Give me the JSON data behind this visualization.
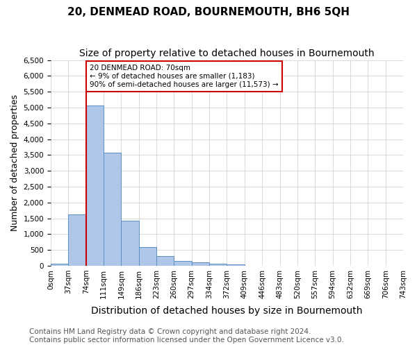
{
  "title": "20, DENMEAD ROAD, BOURNEMOUTH, BH6 5QH",
  "subtitle": "Size of property relative to detached houses in Bournemouth",
  "xlabel": "Distribution of detached houses by size in Bournemouth",
  "ylabel": "Number of detached properties",
  "bin_labels": [
    "0sqm",
    "37sqm",
    "74sqm",
    "111sqm",
    "149sqm",
    "186sqm",
    "223sqm",
    "260sqm",
    "297sqm",
    "334sqm",
    "372sqm",
    "409sqm",
    "446sqm",
    "483sqm",
    "520sqm",
    "557sqm",
    "594sqm",
    "632sqm",
    "669sqm",
    "706sqm",
    "743sqm"
  ],
  "bar_values": [
    70,
    1620,
    5070,
    3580,
    1420,
    590,
    310,
    155,
    100,
    60,
    50,
    0,
    0,
    0,
    0,
    0,
    0,
    0,
    0,
    0
  ],
  "bar_color": "#aec6e8",
  "bar_edge_color": "#5a8fc2",
  "ylim": [
    0,
    6500
  ],
  "yticks": [
    0,
    500,
    1000,
    1500,
    2000,
    2500,
    3000,
    3500,
    4000,
    4500,
    5000,
    5500,
    6000,
    6500
  ],
  "property_line_x": 74,
  "annotation_box_text": "20 DENMEAD ROAD: 70sqm\n← 9% of detached houses are smaller (1,183)\n90% of semi-detached houses are larger (11,573) →",
  "annotation_box_color": "#cc0000",
  "footer_line1": "Contains HM Land Registry data © Crown copyright and database right 2024.",
  "footer_line2": "Contains public sector information licensed under the Open Government Licence v3.0.",
  "background_color": "#ffffff",
  "grid_color": "#cccccc",
  "title_fontsize": 11,
  "subtitle_fontsize": 10,
  "xlabel_fontsize": 10,
  "ylabel_fontsize": 9,
  "tick_fontsize": 7.5,
  "footer_fontsize": 7.5
}
